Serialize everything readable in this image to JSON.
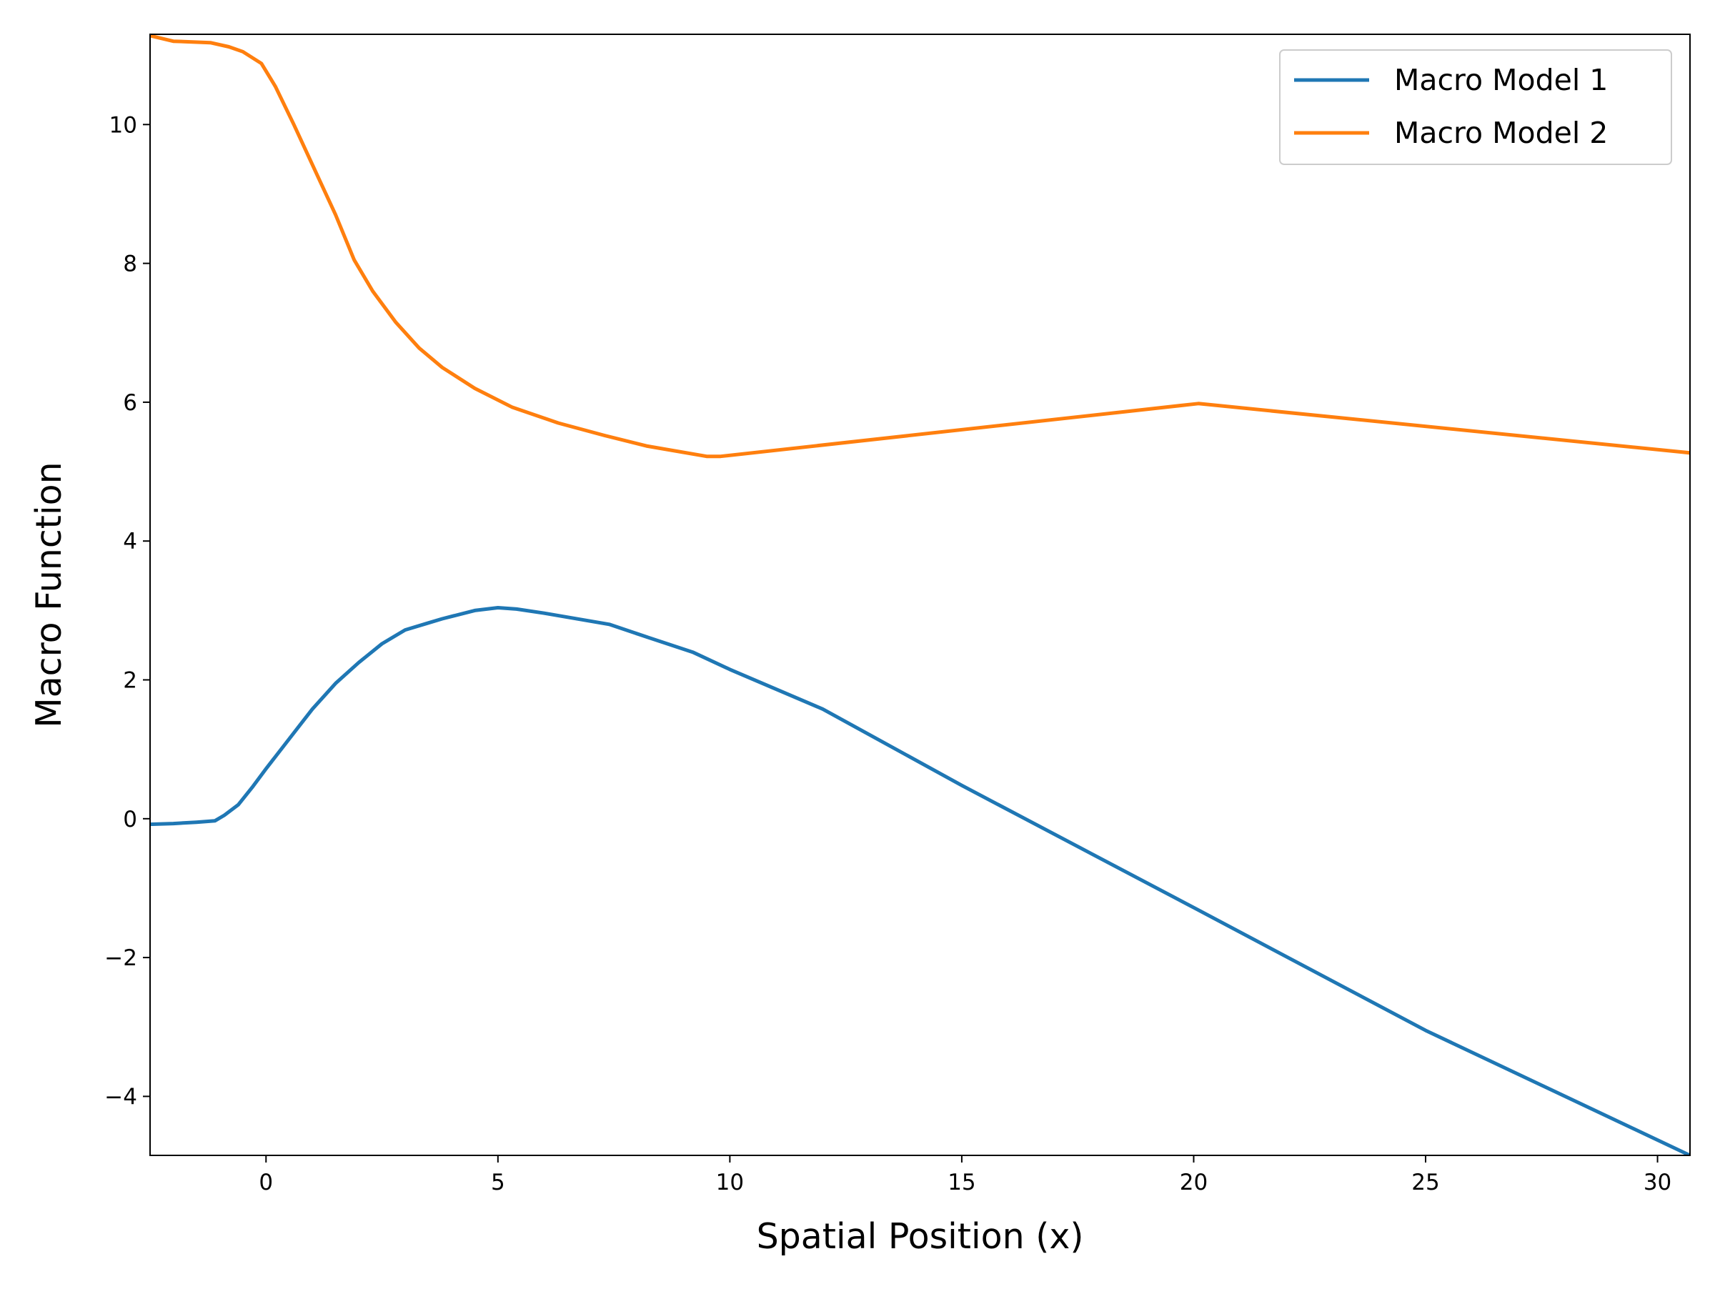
{
  "chart_data": {
    "type": "line",
    "title": "",
    "xlabel": "Spatial Position (x)",
    "ylabel": "Macro Function",
    "xlim": [
      -2.5,
      30.7
    ],
    "ylim": [
      -4.85,
      11.3
    ],
    "xticks": [
      0,
      5,
      10,
      15,
      20,
      25,
      30
    ],
    "yticks": [
      -4,
      -2,
      0,
      2,
      4,
      6,
      8,
      10
    ],
    "xtick_labels": [
      "0",
      "5",
      "10",
      "15",
      "20",
      "25",
      "30"
    ],
    "ytick_labels": [
      "−4",
      "−2",
      "0",
      "2",
      "4",
      "6",
      "8",
      "10"
    ],
    "grid": false,
    "legend_position": "top-right",
    "series": [
      {
        "name": "Macro Model 1",
        "color": "#1f77b4",
        "x": [
          -2.5,
          -2.0,
          -1.5,
          -1.1,
          -0.9,
          -0.6,
          -0.3,
          0.0,
          0.5,
          1.0,
          1.5,
          2.0,
          2.5,
          3.0,
          3.5,
          3.8,
          4.5,
          5.0,
          5.4,
          6.0,
          7.4,
          8.2,
          9.2,
          10.0,
          12.0,
          15.0,
          20.0,
          25.0,
          30.7
        ],
        "y": [
          -0.08,
          -0.07,
          -0.05,
          -0.03,
          0.05,
          0.2,
          0.45,
          0.72,
          1.15,
          1.58,
          1.95,
          2.25,
          2.52,
          2.72,
          2.82,
          2.88,
          3.0,
          3.04,
          3.02,
          2.96,
          2.8,
          2.62,
          2.4,
          2.15,
          1.58,
          0.48,
          -1.28,
          -3.05,
          -4.85
        ]
      },
      {
        "name": "Macro Model 2",
        "color": "#ff7f0e",
        "x": [
          -2.5,
          -2.0,
          -1.2,
          -0.8,
          -0.5,
          -0.1,
          0.2,
          0.6,
          1.0,
          1.5,
          1.9,
          2.3,
          2.8,
          3.3,
          3.8,
          4.5,
          5.3,
          6.3,
          7.3,
          8.2,
          9.5,
          9.8,
          20.1,
          30.7
        ],
        "y": [
          11.28,
          11.2,
          11.18,
          11.12,
          11.05,
          10.88,
          10.55,
          10.0,
          9.42,
          8.7,
          8.05,
          7.6,
          7.15,
          6.78,
          6.5,
          6.2,
          5.93,
          5.7,
          5.52,
          5.37,
          5.22,
          5.22,
          5.98,
          5.27
        ]
      }
    ]
  }
}
